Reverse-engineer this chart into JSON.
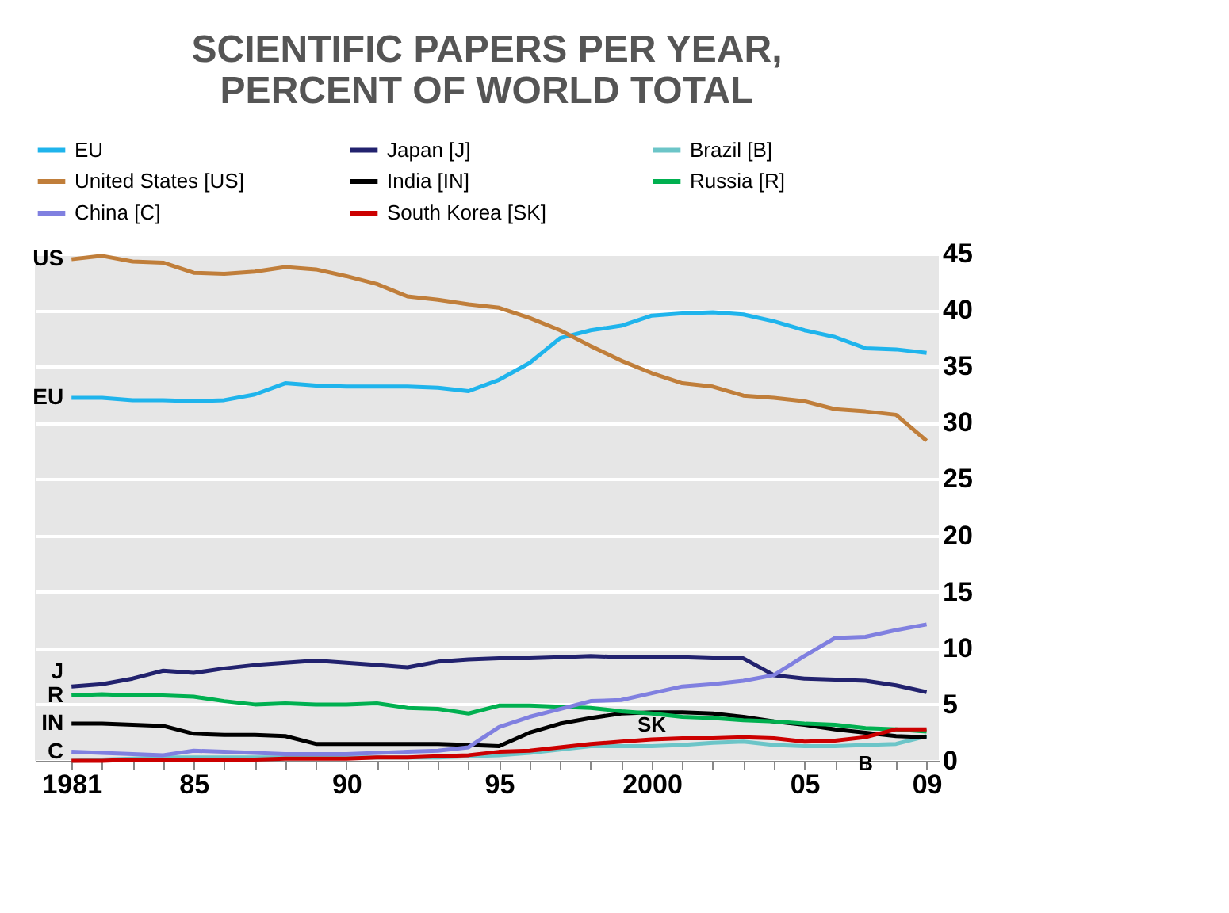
{
  "chart_data": {
    "type": "line",
    "title": [
      "SCIENTIFIC PAPERS PER YEAR,",
      "PERCENT OF WORLD TOTAL"
    ],
    "x": [
      1981,
      1982,
      1983,
      1984,
      1985,
      1986,
      1987,
      1988,
      1989,
      1990,
      1991,
      1992,
      1993,
      1994,
      1995,
      1996,
      1997,
      1998,
      1999,
      2000,
      2001,
      2002,
      2003,
      2004,
      2005,
      2006,
      2007,
      2008,
      2009
    ],
    "xlim": [
      1979.8,
      2009.4
    ],
    "xticks": [
      {
        "value": 1981,
        "label": "1981"
      },
      {
        "value": 1982,
        "label": null
      },
      {
        "value": 1983,
        "label": null
      },
      {
        "value": 1984,
        "label": null
      },
      {
        "value": 1985,
        "label": "85"
      },
      {
        "value": 1986,
        "label": null
      },
      {
        "value": 1987,
        "label": null
      },
      {
        "value": 1988,
        "label": null
      },
      {
        "value": 1989,
        "label": null
      },
      {
        "value": 1990,
        "label": "90"
      },
      {
        "value": 1991,
        "label": null
      },
      {
        "value": 1992,
        "label": null
      },
      {
        "value": 1993,
        "label": null
      },
      {
        "value": 1994,
        "label": null
      },
      {
        "value": 1995,
        "label": "95"
      },
      {
        "value": 1996,
        "label": null
      },
      {
        "value": 1997,
        "label": null
      },
      {
        "value": 1998,
        "label": null
      },
      {
        "value": 1999,
        "label": null
      },
      {
        "value": 2000,
        "label": "2000"
      },
      {
        "value": 2001,
        "label": null
      },
      {
        "value": 2002,
        "label": null
      },
      {
        "value": 2003,
        "label": null
      },
      {
        "value": 2004,
        "label": null
      },
      {
        "value": 2005,
        "label": "05"
      },
      {
        "value": 2006,
        "label": null
      },
      {
        "value": 2007,
        "label": null
      },
      {
        "value": 2008,
        "label": null
      },
      {
        "value": 2009,
        "label": "09"
      }
    ],
    "ylim": [
      0,
      45
    ],
    "yticks": [
      0,
      5,
      10,
      15,
      20,
      25,
      30,
      35,
      40,
      45
    ],
    "grid": "y",
    "legend": "top",
    "line_style": "solid",
    "marker": "none",
    "series": [
      {
        "name": "EU",
        "color": "#1fb4ec",
        "values": [
          32.2,
          32.2,
          32,
          32,
          31.9,
          32,
          32.5,
          33.5,
          33.3,
          33.2,
          33.2,
          33.2,
          33.1,
          32.8,
          33.8,
          35.3,
          37.5,
          38.2,
          38.6,
          39.5,
          39.7,
          39.8,
          39.6,
          39,
          38.2,
          37.6,
          36.6,
          36.5,
          36.2
        ]
      },
      {
        "name": "Japan [J]",
        "color": "#22226e",
        "values": [
          6.6,
          6.8,
          7.3,
          8,
          7.8,
          8.2,
          8.5,
          8.7,
          8.9,
          8.7,
          8.5,
          8.3,
          8.8,
          9,
          9.1,
          9.1,
          9.2,
          9.3,
          9.2,
          9.2,
          9.2,
          9.1,
          9.1,
          7.6,
          7.3,
          7.2,
          7.1,
          6.7,
          6.1
        ]
      },
      {
        "name": "Brazil [B]",
        "color": "#6cc5c8",
        "values": [
          0,
          0.1,
          0.2,
          0.3,
          0.3,
          0.3,
          0.3,
          0.3,
          0.3,
          0.3,
          0.3,
          0.3,
          0.3,
          0.4,
          0.5,
          0.7,
          1,
          1.3,
          1.3,
          1.3,
          1.4,
          1.6,
          1.7,
          1.4,
          1.3,
          1.3,
          1.4,
          1.5,
          2.2
        ]
      },
      {
        "name": "United States [US]",
        "color": "#c07e3a",
        "values": [
          44.5,
          44.8,
          44.3,
          44.2,
          43.3,
          43.2,
          43.4,
          43.8,
          43.6,
          43,
          42.3,
          41.2,
          40.9,
          40.5,
          40.2,
          39.3,
          38.2,
          36.8,
          35.5,
          34.4,
          33.5,
          33.2,
          32.4,
          32.2,
          31.9,
          31.2,
          31,
          30.7,
          28.4
        ]
      },
      {
        "name": "India [IN]",
        "color": "#000000",
        "values": [
          3.3,
          3.3,
          3.2,
          3.1,
          2.4,
          2.3,
          2.3,
          2.2,
          1.5,
          1.5,
          1.5,
          1.5,
          1.5,
          1.4,
          1.3,
          2.5,
          3.3,
          3.8,
          4.2,
          4.3,
          4.3,
          4.2,
          3.9,
          3.5,
          3.2,
          2.8,
          2.5,
          2.2,
          2.1
        ]
      },
      {
        "name": "Russia [R]",
        "color": "#00b050",
        "values": [
          5.8,
          5.9,
          5.8,
          5.8,
          5.7,
          5.3,
          5,
          5.1,
          5,
          5,
          5.1,
          4.7,
          4.6,
          4.2,
          4.9,
          4.9,
          4.8,
          4.7,
          4.4,
          4.2,
          3.9,
          3.8,
          3.6,
          3.5,
          3.3,
          3.2,
          2.9,
          2.8,
          2.6
        ]
      },
      {
        "name": "China [C]",
        "color": "#8080e0",
        "values": [
          0.8,
          0.7,
          0.6,
          0.5,
          0.9,
          0.8,
          0.7,
          0.6,
          0.6,
          0.6,
          0.7,
          0.8,
          0.9,
          1.2,
          3,
          3.9,
          4.6,
          5.3,
          5.4,
          6,
          6.6,
          6.8,
          7.1,
          7.6,
          9.3,
          10.9,
          11,
          11.6,
          12.1
        ]
      },
      {
        "name": "South Korea [SK]",
        "color": "#cc0000",
        "values": [
          0,
          0,
          0.1,
          0.1,
          0.1,
          0.1,
          0.1,
          0.2,
          0.2,
          0.2,
          0.3,
          0.3,
          0.4,
          0.5,
          0.8,
          0.9,
          1.2,
          1.5,
          1.7,
          1.9,
          2,
          2,
          2.1,
          2,
          1.7,
          1.8,
          2.1,
          2.8,
          2.8
        ]
      }
    ],
    "annotations": [
      {
        "text": "US",
        "x": 1981,
        "y": 44.5
      },
      {
        "text": "EU",
        "x": 1981,
        "y": 32.2
      },
      {
        "text": "J",
        "x": 1981,
        "y": 6.6
      },
      {
        "text": "R",
        "x": 1981,
        "y": 5.8
      },
      {
        "text": "IN",
        "x": 1981,
        "y": 3.3
      },
      {
        "text": "C",
        "x": 1981,
        "y": 0.8
      },
      {
        "text": "SK",
        "x": 2000,
        "y": 1.9
      },
      {
        "text": "B",
        "x": 2007,
        "y": 1.4
      }
    ]
  }
}
